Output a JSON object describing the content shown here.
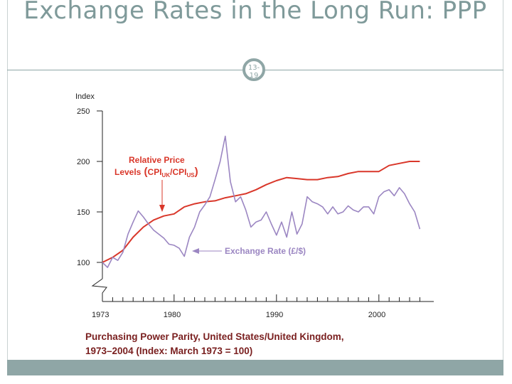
{
  "slide": {
    "title": "Exchange Rates in the Long Run: PPP",
    "page_number": "13-19",
    "caption_line1": "Purchasing Power Parity, United States/United Kingdom,",
    "caption_line2": "1973–2004 (Index: March 1973 = 100)"
  },
  "colors": {
    "accent": "#8fa6a6",
    "price_series": "#d9372a",
    "fx_series": "#9b86c2",
    "caption": "#7a2020"
  },
  "chart_data": {
    "type": "line",
    "title": "Purchasing Power Parity, United States/United Kingdom, 1973–2004 (Index: March 1973 = 100)",
    "ylabel": "Index",
    "xlabel": "",
    "ylim": [
      100,
      250
    ],
    "xlim": [
      1973,
      2005
    ],
    "y_ticks": [
      100,
      150,
      200,
      250
    ],
    "x_tick_labels": [
      1973,
      1980,
      1990,
      2000
    ],
    "axis_break": true,
    "annotations": {
      "relative_price": "Relative Price",
      "levels_prefix": "Levels",
      "cpi_uk": "CPI",
      "cpi_uk_sub": "UK",
      "cpi_us": "CPI",
      "cpi_us_sub": "US",
      "exchange_rate": "Exchange Rate (£/$)"
    },
    "series": [
      {
        "name": "Relative Price Levels (CPI UK/CPI US)",
        "x": [
          1973,
          1974,
          1975,
          1976,
          1977,
          1978,
          1979,
          1980,
          1981,
          1982,
          1983,
          1984,
          1985,
          1986,
          1987,
          1988,
          1989,
          1990,
          1991,
          1992,
          1993,
          1994,
          1995,
          1996,
          1997,
          1998,
          1999,
          2000,
          2001,
          2002,
          2003,
          2004
        ],
        "values": [
          100,
          105,
          112,
          125,
          135,
          142,
          146,
          148,
          155,
          158,
          160,
          161,
          164,
          166,
          168,
          172,
          177,
          181,
          184,
          183,
          182,
          182,
          184,
          185,
          188,
          190,
          190,
          190,
          196,
          198,
          200,
          200
        ]
      },
      {
        "name": "Exchange Rate (£/$)",
        "x": [
          1973,
          1973.5,
          1974,
          1974.5,
          1975,
          1975.5,
          1976,
          1976.5,
          1977,
          1977.5,
          1978,
          1978.5,
          1979,
          1979.5,
          1980,
          1980.5,
          1981,
          1981.5,
          1982,
          1982.5,
          1983,
          1983.5,
          1984,
          1984.5,
          1985,
          1985.5,
          1986,
          1986.5,
          1987,
          1987.5,
          1988,
          1988.5,
          1989,
          1989.5,
          1990,
          1990.5,
          1991,
          1991.5,
          1992,
          1992.5,
          1993,
          1993.5,
          1994,
          1994.5,
          1995,
          1995.5,
          1996,
          1996.5,
          1997,
          1997.5,
          1998,
          1998.5,
          1999,
          1999.5,
          2000,
          2000.5,
          2001,
          2001.5,
          2002,
          2002.5,
          2003,
          2003.5,
          2004
        ],
        "values": [
          100,
          95,
          105,
          102,
          110,
          128,
          140,
          151,
          145,
          138,
          132,
          128,
          124,
          118,
          117,
          114,
          106,
          125,
          135,
          150,
          157,
          165,
          182,
          200,
          225,
          180,
          160,
          165,
          152,
          135,
          140,
          142,
          150,
          138,
          127,
          140,
          125,
          150,
          128,
          138,
          165,
          160,
          158,
          155,
          148,
          155,
          148,
          150,
          156,
          152,
          150,
          155,
          155,
          148,
          165,
          170,
          172,
          166,
          174,
          168,
          158,
          150,
          133
        ]
      }
    ]
  }
}
